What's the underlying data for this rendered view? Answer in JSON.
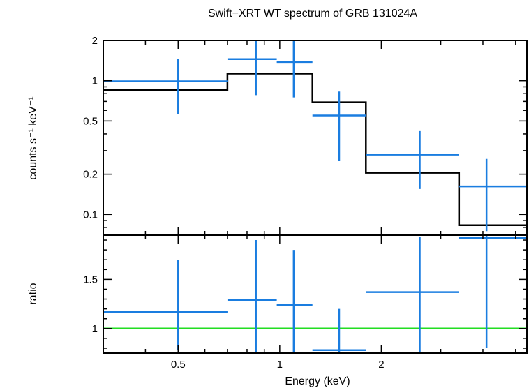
{
  "chart_data": [
    {
      "type": "scatter",
      "title": "Swift−XRT WT spectrum of GRB 131024A",
      "ylabel": "counts s⁻¹ keV⁻¹",
      "xscale": "log",
      "yscale": "log",
      "xlim": [
        0.3,
        5.4
      ],
      "ylim": [
        0.07,
        2.0
      ],
      "yticks": [
        0.1,
        0.2,
        0.5,
        1,
        2
      ],
      "ytick_labels": [
        "0.1",
        "0.2",
        "0.5",
        "1",
        "2"
      ],
      "series": [
        {
          "kind": "data-with-errors",
          "points": [
            {
              "x": 0.5,
              "xlo": 0.3,
              "xhi": 0.7,
              "y": 0.99,
              "ylo": 0.56,
              "yhi": 1.45
            },
            {
              "x": 0.85,
              "xlo": 0.7,
              "xhi": 0.98,
              "y": 1.45,
              "ylo": 0.78,
              "yhi": 2.0
            },
            {
              "x": 1.1,
              "xlo": 0.98,
              "xhi": 1.25,
              "y": 1.38,
              "ylo": 0.75,
              "yhi": 2.0
            },
            {
              "x": 1.5,
              "xlo": 1.25,
              "xhi": 1.8,
              "y": 0.55,
              "ylo": 0.25,
              "yhi": 0.83
            },
            {
              "x": 2.6,
              "xlo": 1.8,
              "xhi": 3.4,
              "y": 0.28,
              "ylo": 0.155,
              "yhi": 0.42
            },
            {
              "x": 4.1,
              "xlo": 3.4,
              "xhi": 5.4,
              "y": 0.162,
              "ylo": 0.075,
              "yhi": 0.26
            }
          ]
        },
        {
          "kind": "model-step",
          "steps": [
            {
              "x0": 0.3,
              "x1": 0.7,
              "y": 0.85
            },
            {
              "x0": 0.7,
              "x1": 1.25,
              "y": 1.13
            },
            {
              "x0": 1.25,
              "x1": 1.8,
              "y": 0.69
            },
            {
              "x0": 1.8,
              "x1": 3.4,
              "y": 0.205
            },
            {
              "x0": 3.4,
              "x1": 5.4,
              "y": 0.083
            }
          ]
        }
      ]
    },
    {
      "type": "scatter",
      "xlabel": "Energy (keV)",
      "ylabel": "ratio",
      "xscale": "log",
      "xlim": [
        0.3,
        5.4
      ],
      "ylim": [
        0.75,
        1.95
      ],
      "xticks": [
        0.5,
        1,
        2
      ],
      "xtick_labels": [
        "0.5",
        "1",
        "2"
      ],
      "yticks": [
        1,
        1.5
      ],
      "ytick_labels": [
        "1",
        "1.5"
      ],
      "reference_line": 1,
      "series": [
        {
          "kind": "data-with-errors",
          "points": [
            {
              "x": 0.5,
              "xlo": 0.3,
              "xhi": 0.7,
              "y": 1.17,
              "ylo": 0.78,
              "yhi": 1.7
            },
            {
              "x": 0.85,
              "xlo": 0.7,
              "xhi": 0.98,
              "y": 1.29,
              "ylo": 0.75,
              "yhi": 1.9
            },
            {
              "x": 1.1,
              "xlo": 0.98,
              "xhi": 1.25,
              "y": 1.24,
              "ylo": 0.75,
              "yhi": 1.8
            },
            {
              "x": 1.5,
              "xlo": 1.25,
              "xhi": 1.8,
              "y": 0.78,
              "ylo": 0.75,
              "yhi": 1.2
            },
            {
              "x": 2.6,
              "xlo": 1.8,
              "xhi": 3.4,
              "y": 1.37,
              "ylo": 0.75,
              "yhi": 1.93
            },
            {
              "x": 4.1,
              "xlo": 3.4,
              "xhi": 5.4,
              "y": 1.92,
              "ylo": 0.8,
              "yhi": 1.95
            }
          ]
        }
      ]
    }
  ],
  "colors": {
    "data": "#1a7de0",
    "model": "#000000",
    "ratio_line": "#22dd22",
    "axis": "#000000"
  }
}
